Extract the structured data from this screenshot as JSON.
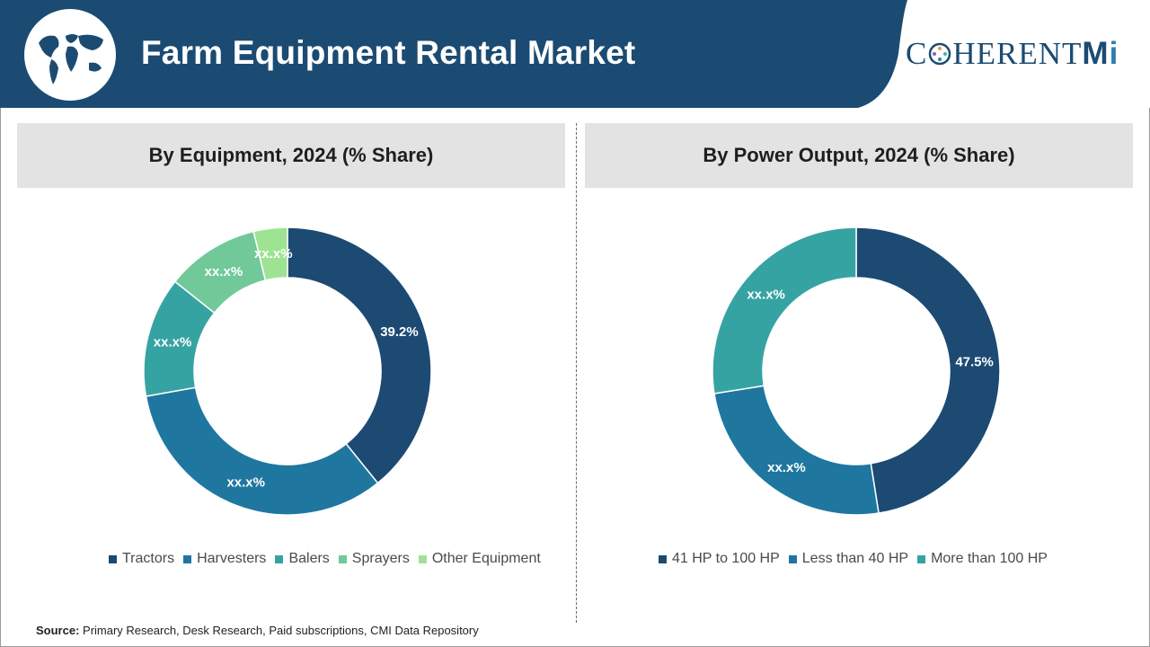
{
  "header": {
    "title": "Farm Equipment Rental Market",
    "brand_prefix": "C",
    "brand_rest": "HERENT",
    "brand_suffix": "M",
    "brand_i": "i"
  },
  "colors": {
    "header_bg": "#1b4b72",
    "tractors": "#1c4a72",
    "harvesters": "#1f77a0",
    "balers": "#36a3a3",
    "sprayers": "#71c99a",
    "other": "#9ee394",
    "hp_41_100": "#1c4a72",
    "hp_lt_40": "#1f77a0",
    "hp_gt_100": "#36a3a3"
  },
  "source": {
    "label": "Source:",
    "text": "Primary Research, Desk Research, Paid subscriptions, CMI Data Repository"
  },
  "chart_data": [
    {
      "type": "pie",
      "subtype": "donut",
      "title": "By Equipment, 2024 (% Share)",
      "legend_position": "bottom",
      "categories": [
        "Tractors",
        "Harvesters",
        "Balers",
        "Sprayers",
        "Other Equipment"
      ],
      "values": [
        39.2,
        33.0,
        13.5,
        10.5,
        3.8
      ],
      "labels": [
        "39.2%",
        "xx.x%",
        "xx.x%",
        "xx.x%",
        "xx.x%"
      ],
      "colors": [
        "#1c4a72",
        "#1f77a0",
        "#36a3a3",
        "#71c99a",
        "#9ee394"
      ]
    },
    {
      "type": "pie",
      "subtype": "donut",
      "title": "By Power Output, 2024 (% Share)",
      "legend_position": "bottom",
      "categories": [
        "41 HP to 100 HP",
        "Less than 40 HP",
        "More than 100 HP"
      ],
      "values": [
        47.5,
        25.0,
        27.5
      ],
      "labels": [
        "47.5%",
        "xx.x%",
        "xx.x%"
      ],
      "colors": [
        "#1c4a72",
        "#1f77a0",
        "#36a3a3"
      ]
    }
  ]
}
